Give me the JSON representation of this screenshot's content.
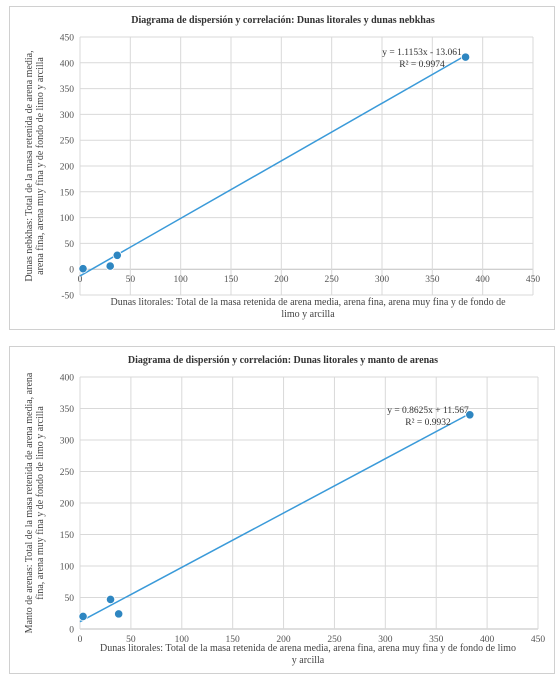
{
  "charts": [
    {
      "title": "Diagrama de dispersión  y correlación: Dunas litorales y dunas nebkhas",
      "xlabel_lines": [
        "Dunas litorales: Total de la masa retenida de arena media, arena fina, arena muy fina y de fondo de",
        "limo y arcilla"
      ],
      "ylabel_lines": [
        "Dunas nebkhas: Total de la masa retenida de arena media,",
        "arena fina, arena muy fina y de fondo de limo y arcilla"
      ],
      "equation": "y = 1.1153x - 13.061",
      "r2": "R² = 0.9974"
    },
    {
      "title": "Diagrama de dispersión  y correlación: Dunas litorales y manto de arenas",
      "xlabel_lines": [
        "Dunas litorales: Total de la masa retenida de arena media, arena fina, arena muy fina y de fondo de limo",
        "y arcilla"
      ],
      "ylabel_lines": [
        "Manto de arenas: Total de la masa retenida de arena media, arena",
        "fina, arena muy fina y de fondo de limo y arcilla"
      ],
      "equation": "y = 0.8625x + 11.567",
      "r2": "R² = 0.9932"
    }
  ],
  "chart_data": [
    {
      "type": "scatter",
      "title": "Diagrama de dispersión  y correlación: Dunas litorales y dunas nebkhas",
      "xlabel": "Dunas litorales: Total de la masa retenida de arena media, arena fina, arena muy fina y de fondo de limo y arcilla",
      "ylabel": "Dunas nebkhas: Total de la masa retenida de arena media, arena fina, arena muy fina y de fondo de limo y arcilla",
      "xlim": [
        0,
        450
      ],
      "ylim": [
        -50,
        450
      ],
      "xticks": [
        0,
        50,
        100,
        150,
        200,
        250,
        300,
        350,
        400,
        450
      ],
      "yticks": [
        -50,
        0,
        50,
        100,
        150,
        200,
        250,
        300,
        350,
        400,
        450
      ],
      "x": [
        3,
        30,
        37,
        383
      ],
      "y": [
        1,
        6,
        27,
        411
      ],
      "trendline": {
        "slope": 1.1153,
        "intercept": -13.061,
        "x_range": [
          0,
          383
        ]
      },
      "point_color": "#2e86c1",
      "line_color": "#3a9ad9",
      "grid": true
    },
    {
      "type": "scatter",
      "title": "Diagrama de dispersión  y correlación: Dunas litorales y manto de arenas",
      "xlabel": "Dunas litorales: Total de la masa retenida de arena media, arena fina, arena muy fina y de fondo de limo y arcilla",
      "ylabel": "Manto de arenas: Total de la masa retenida de arena media, arena fina, arena muy fina y de fondo de limo y arcilla",
      "xlim": [
        0,
        450
      ],
      "ylim": [
        0,
        400
      ],
      "xticks": [
        0,
        50,
        100,
        150,
        200,
        250,
        300,
        350,
        400,
        450
      ],
      "yticks": [
        0,
        50,
        100,
        150,
        200,
        250,
        300,
        350,
        400
      ],
      "x": [
        3,
        30,
        38,
        383
      ],
      "y": [
        20,
        47,
        24,
        340
      ],
      "trendline": {
        "slope": 0.8625,
        "intercept": 11.567,
        "x_range": [
          0,
          383
        ]
      },
      "point_color": "#2e86c1",
      "line_color": "#3a9ad9",
      "grid": true
    }
  ]
}
